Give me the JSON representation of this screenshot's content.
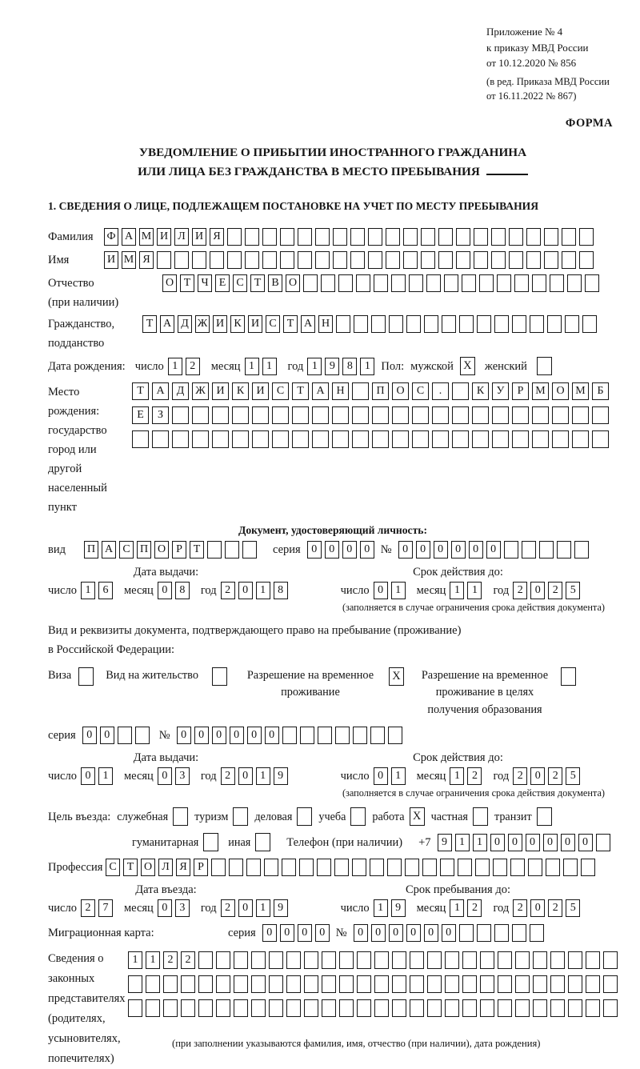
{
  "colors": {
    "ink": "#161616",
    "paper": "#ffffff"
  },
  "header": {
    "annex_lines": [
      "Приложение № 4",
      "к приказу МВД России",
      "от 10.12.2020 № 856"
    ],
    "amendment_lines": [
      "(в ред. Приказа МВД России",
      "от 16.11.2022 № 867)"
    ],
    "form_caption": "ФОРМА",
    "title_line1": "УВЕДОМЛЕНИЕ О ПРИБЫТИИ ИНОСТРАННОГО ГРАЖДАНИНА",
    "title_line2": "ИЛИ ЛИЦА БЕЗ ГРАЖДАНСТВА В МЕСТО ПРЕБЫВАНИЯ",
    "section1_heading": "1. СВЕДЕНИЯ О ЛИЦЕ, ПОДЛЕЖАЩЕМ ПОСТАНОВКЕ НА УЧЕТ ПО МЕСТУ ПРЕБЫВАНИЯ"
  },
  "person": {
    "surname": {
      "label": "Фамилия",
      "value": "ФАМИЛИЯ",
      "length": 28
    },
    "given_name": {
      "label": "Имя",
      "value": "ИМЯ",
      "length": 28
    },
    "patronymic": {
      "label": "Отчество",
      "label_note": "(при наличии)",
      "value": "ОТЧЕСТВО",
      "length": 25
    },
    "citizenship": {
      "label": "Гражданство,",
      "label2": "подданство",
      "value": "ТАДЖИКИСТАН",
      "length": 26
    },
    "birth_date": {
      "label": "Дата рождения:",
      "day_label": "число",
      "day": "12",
      "month_label": "месяц",
      "month": "11",
      "year_label": "год",
      "year": "1981"
    },
    "sex": {
      "label": "Пол:",
      "male_label": "мужской",
      "male_mark": "X",
      "female_label": "женский",
      "female_mark": ""
    },
    "birth_place": {
      "label": "Место рождения:",
      "sublabels": [
        "государство",
        "город или другой",
        "населенный пункт"
      ],
      "rows": [
        {
          "value": "ТАДЖИКИСТАН ПОС. КУРМОМБ",
          "length": 24
        },
        {
          "value": "ЕЗ",
          "length": 24
        },
        {
          "value": "",
          "length": 24
        }
      ]
    }
  },
  "identity_document": {
    "heading": "Документ, удостоверяющий личность:",
    "type": {
      "label": "вид",
      "value": "ПАСПОРТ",
      "length": 10
    },
    "series": {
      "label": "серия",
      "value": "0000",
      "length": 4
    },
    "number": {
      "label": "№",
      "value": "000000",
      "length": 11
    },
    "issue_date": {
      "heading": "Дата выдачи:",
      "day_label": "число",
      "day": "16",
      "month_label": "месяц",
      "month": "08",
      "year_label": "год",
      "year": "2018"
    },
    "valid_until": {
      "heading": "Срок действия до:",
      "day_label": "число",
      "day": "01",
      "month_label": "месяц",
      "month": "11",
      "year_label": "год",
      "year": "2025"
    },
    "validity_note": "(заполняется в случае ограничения срока действия документа)"
  },
  "right_of_stay": {
    "intro_line1": "Вид и реквизиты документа, подтверждающего право на пребывание (проживание)",
    "intro_line2": "в Российской Федерации:",
    "options": [
      {
        "label_lines": [
          "Виза"
        ],
        "mark": ""
      },
      {
        "label_lines": [
          "Вид на жительство"
        ],
        "mark": ""
      },
      {
        "label_lines": [
          "Разрешение на временное",
          "проживание"
        ],
        "mark": "X"
      },
      {
        "label_lines": [
          "Разрешение на временное",
          "проживание в целях",
          "получения образования"
        ],
        "mark": ""
      }
    ],
    "series": {
      "label": "серия",
      "value": "00",
      "length": 4
    },
    "number": {
      "label": "№",
      "value": "000000",
      "length": 13
    },
    "issue_date": {
      "heading": "Дата выдачи:",
      "day_label": "число",
      "day": "01",
      "month_label": "месяц",
      "month": "03",
      "year_label": "год",
      "year": "2019"
    },
    "valid_until": {
      "heading": "Срок действия до:",
      "day_label": "число",
      "day": "01",
      "month_label": "месяц",
      "month": "12",
      "year_label": "год",
      "year": "2025"
    },
    "validity_note": "(заполняется в случае ограничения срока действия документа)"
  },
  "visit": {
    "purpose_label": "Цель въезда:",
    "purposes": [
      {
        "label": "служебная",
        "mark": ""
      },
      {
        "label": "туризм",
        "mark": ""
      },
      {
        "label": "деловая",
        "mark": ""
      },
      {
        "label": "учеба",
        "mark": ""
      },
      {
        "label": "работа",
        "mark": "X"
      },
      {
        "label": "частная",
        "mark": ""
      },
      {
        "label": "транзит",
        "mark": ""
      }
    ],
    "purposes2": [
      {
        "label": "гуманитарная",
        "mark": ""
      },
      {
        "label": "иная",
        "mark": ""
      }
    ],
    "phone": {
      "label": "Телефон (при наличии)",
      "prefix": "+7",
      "value": "911000000",
      "length": 10
    },
    "profession": {
      "label": "Профессия",
      "value": "СТОЛЯР",
      "length": 28
    },
    "entry_date": {
      "heading": "Дата въезда:",
      "day_label": "число",
      "day": "27",
      "month_label": "месяц",
      "month": "03",
      "year_label": "год",
      "year": "2019"
    },
    "stay_until": {
      "heading": "Срок пребывания до:",
      "day_label": "число",
      "day": "19",
      "month_label": "месяц",
      "month": "12",
      "year_label": "год",
      "year": "2025"
    },
    "migration_card": {
      "label": "Миграционная карта:",
      "series_label": "серия",
      "series": {
        "value": "0000",
        "length": 4
      },
      "number_label": "№",
      "number": {
        "value": "000000",
        "length": 11
      }
    }
  },
  "representatives": {
    "label_lines": [
      "Сведения о",
      "законных",
      "представителях",
      "(родителях,",
      "усыновителях,",
      "попечителях)"
    ],
    "rows": [
      {
        "value": "1122",
        "length": 28
      },
      {
        "value": "",
        "length": 28
      },
      {
        "value": "",
        "length": 28
      }
    ],
    "note": "(при заполнении указываются фамилия, имя, отчество (при наличии), дата рождения)"
  }
}
